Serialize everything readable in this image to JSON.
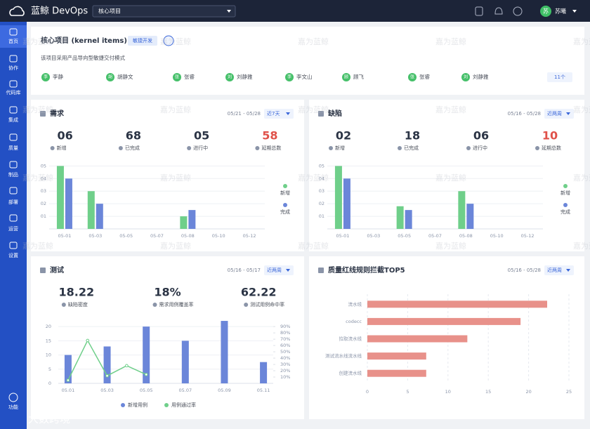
{
  "topbar": {
    "logo": "蓝鲸 DevOps",
    "project_select": "核心项目",
    "user_avatar": "苏",
    "user_name": "苏曦"
  },
  "sidebar": {
    "items": [
      "首页",
      "协作",
      "代码库",
      "集成",
      "质量",
      "制品",
      "部署",
      "运营",
      "设置"
    ],
    "bottom": "功能"
  },
  "project": {
    "title": "核心项目 (kernel items)",
    "tag": "敏捷开发",
    "description": "该项目采用产品导向型敏捷交付模式",
    "members": [
      {
        "avatar": "李",
        "name": "李静"
      },
      {
        "avatar": "胡",
        "name": "胡静文"
      },
      {
        "avatar": "张",
        "name": "张睿"
      },
      {
        "avatar": "刘",
        "name": "刘静雅"
      },
      {
        "avatar": "李",
        "name": "李文山"
      },
      {
        "avatar": "顾",
        "name": "顾飞"
      },
      {
        "avatar": "张",
        "name": "张睿"
      },
      {
        "avatar": "刘",
        "name": "刘静雅"
      }
    ],
    "member_count": "11个"
  },
  "watermark": "嘉为蓝鲸",
  "corner_watermark": "大数跨境",
  "chart_data": [
    {
      "type": "bar",
      "title": "需求",
      "date_range": "05/21 - 05/28",
      "period": "近7天",
      "stats": [
        {
          "value": "06",
          "label": "新增",
          "color": "#2b3445"
        },
        {
          "value": "68",
          "label": "已完成",
          "color": "#2b3445"
        },
        {
          "value": "05",
          "label": "进行中",
          "color": "#2b3445"
        },
        {
          "value": "58",
          "label": "延期总数",
          "color": "#e0524a"
        }
      ],
      "categories": [
        "05-01",
        "05-03",
        "05-05",
        "05-07",
        "05-08",
        "05-10",
        "05-12"
      ],
      "series": [
        {
          "name": "新增",
          "color": "#6fcf8a",
          "values": [
            5,
            3,
            0,
            0,
            1,
            0,
            0
          ]
        },
        {
          "name": "完成",
          "color": "#6b86d9",
          "values": [
            4,
            2,
            0,
            0,
            1.5,
            0,
            0
          ]
        }
      ],
      "ylim": [
        0,
        5.3
      ],
      "yticks": [
        {
          "value": 1,
          "label": "01"
        },
        {
          "value": 2,
          "label": "02"
        },
        {
          "value": 3,
          "label": "03"
        },
        {
          "value": 4,
          "label": "04"
        },
        {
          "value": 5,
          "label": "05"
        }
      ],
      "grid": true,
      "legend": "right"
    },
    {
      "type": "bar",
      "title": "缺陷",
      "date_range": "05/16 - 05/28",
      "period": "近两周",
      "stats": [
        {
          "value": "02",
          "label": "新增",
          "color": "#2b3445"
        },
        {
          "value": "18",
          "label": "已完成",
          "color": "#2b3445"
        },
        {
          "value": "06",
          "label": "进行中",
          "color": "#2b3445"
        },
        {
          "value": "10",
          "label": "延期总数",
          "color": "#e0524a"
        }
      ],
      "categories": [
        "05-01",
        "05-03",
        "05-05",
        "05-07",
        "05-08",
        "05-10",
        "05-12"
      ],
      "series": [
        {
          "name": "新增",
          "color": "#6fcf8a",
          "values": [
            5,
            0,
            1.8,
            0,
            3,
            0,
            0
          ]
        },
        {
          "name": "完成",
          "color": "#6b86d9",
          "values": [
            4,
            0,
            1.5,
            0,
            2,
            0,
            0
          ]
        }
      ],
      "ylim": [
        0,
        5.3
      ],
      "yticks": [
        {
          "value": 1,
          "label": "01"
        },
        {
          "value": 2,
          "label": "02"
        },
        {
          "value": 3,
          "label": "03"
        },
        {
          "value": 4,
          "label": "04"
        },
        {
          "value": 5,
          "label": "05"
        }
      ],
      "grid": true,
      "legend": "right"
    },
    {
      "type": "bar-line",
      "title": "测试",
      "date_range": "05/16 - 05/17",
      "period": "近两周",
      "stats": [
        {
          "value": "18.22",
          "label": "缺陷密度",
          "color": "#2b3445"
        },
        {
          "value": "18%",
          "label": "需求用例覆盖率",
          "color": "#2b3445"
        },
        {
          "value": "62.22",
          "label": "测试用例命中率",
          "color": "#2b3445"
        }
      ],
      "categories": [
        "05.01",
        null,
        "05.03",
        null,
        "05.05",
        null,
        "05.07",
        null,
        "05.09",
        null,
        "05.11"
      ],
      "series": [
        {
          "name": "新增用例",
          "color": "#6b86d9",
          "values": [
            10,
            null,
            13,
            null,
            20,
            null,
            15,
            null,
            22,
            null,
            7.5
          ]
        },
        {
          "name": "用例通过率",
          "color": "#6fcf8a",
          "axis": "y2",
          "values": [
            5,
            68,
            12,
            28,
            14,
            null,
            null,
            null,
            null,
            null,
            null
          ]
        }
      ],
      "ylim": [
        0,
        23
      ],
      "yticks": [
        0,
        5,
        10,
        15,
        20
      ],
      "y2lim": [
        0,
        103.5
      ],
      "y2ticks": [
        {
          "value": 10,
          "label": "10%"
        },
        {
          "value": 20,
          "label": "20%"
        },
        {
          "value": 30,
          "label": "30%"
        },
        {
          "value": 40,
          "label": "40%"
        },
        {
          "value": 50,
          "label": "50%"
        },
        {
          "value": 60,
          "label": "60%"
        },
        {
          "value": 70,
          "label": "70%"
        },
        {
          "value": 80,
          "label": "80%"
        },
        {
          "value": 90,
          "label": "90%"
        }
      ],
      "grid": true,
      "legend": "bottom"
    },
    {
      "type": "hbar",
      "title": "质量红线规则拦截TOP5",
      "date_range": "05/16 - 05/28",
      "period": "近两周",
      "categories": [
        "流水线",
        "codecc",
        "拉取流水线",
        "测试流水线流水线",
        "创建流水线"
      ],
      "values": [
        22.3,
        19,
        12.4,
        7.3,
        7.3
      ],
      "color": "#e8918a",
      "xlim": [
        0,
        25
      ],
      "xticks": [
        0,
        5,
        10,
        15,
        20,
        25
      ],
      "grid": true
    }
  ]
}
